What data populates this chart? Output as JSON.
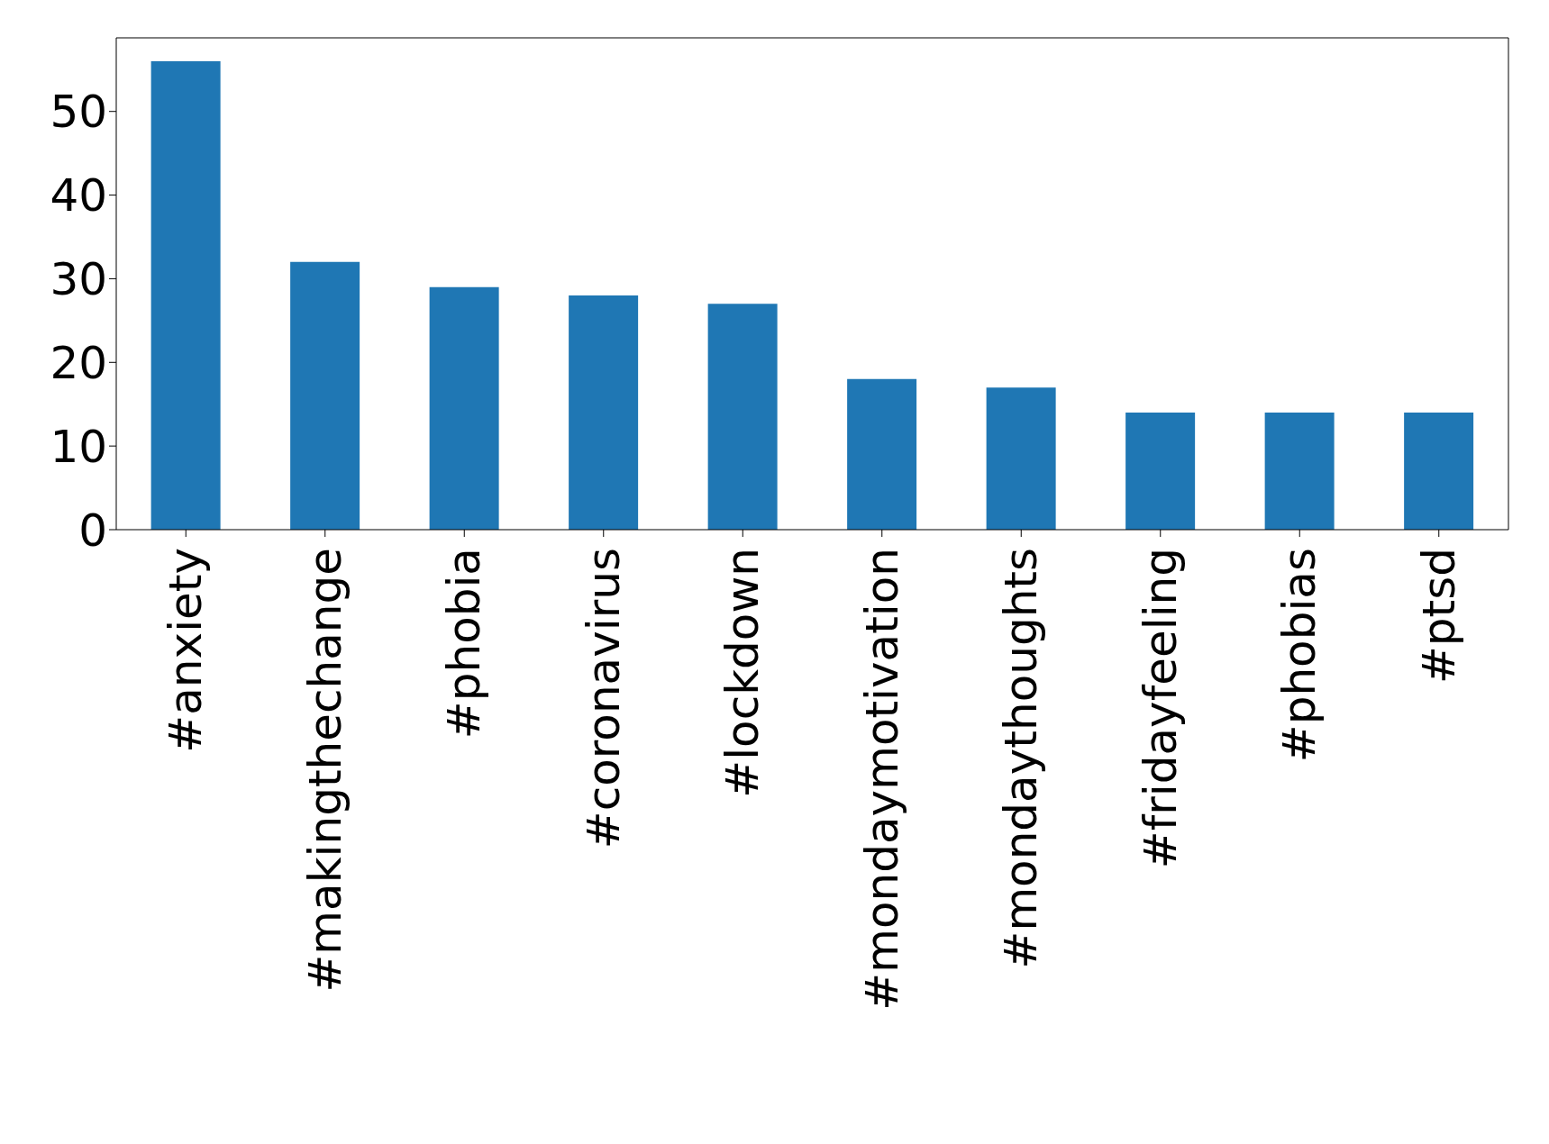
{
  "chart_data": {
    "type": "bar",
    "categories": [
      "#anxiety",
      "#makingthechange",
      "#phobia",
      "#coronavirus",
      "#lockdown",
      "#mondaymotivation",
      "#mondaythoughts",
      "#fridayfeeling",
      "#phobias",
      "#ptsd"
    ],
    "values": [
      56,
      32,
      29,
      28,
      27,
      18,
      17,
      14,
      14,
      14
    ],
    "color": "#1f77b4",
    "ylim": [
      0,
      58.8
    ],
    "yticks": [
      0,
      10,
      20,
      30,
      40,
      50
    ],
    "grid": false
  }
}
